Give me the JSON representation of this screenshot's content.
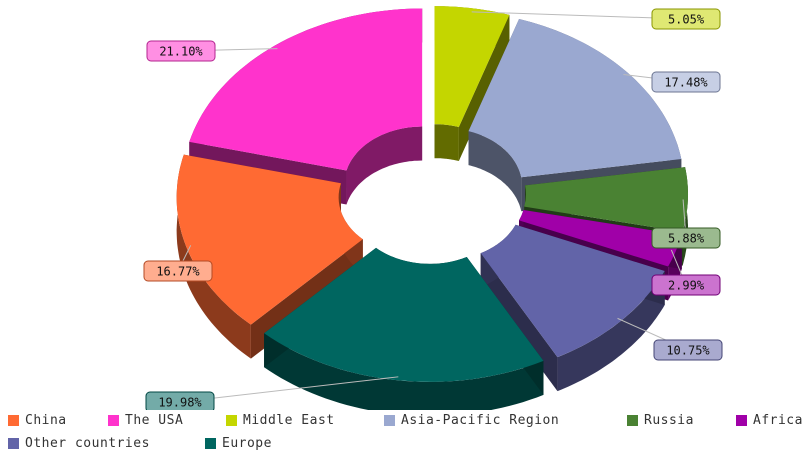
{
  "chart_data": {
    "type": "pie",
    "variant": "3d-exploded-donut",
    "categories": [
      "China",
      "The USA",
      "Middle East",
      "Asia-Pacific Region",
      "Russia",
      "Africa",
      "Other countries",
      "Europe"
    ],
    "values": [
      16.77,
      21.1,
      5.05,
      17.48,
      5.88,
      2.99,
      10.75,
      19.98
    ],
    "labels": [
      "16.77%",
      "21.10%",
      "5.05%",
      "17.48%",
      "5.88%",
      "2.99%",
      "10.75%",
      "19.98%"
    ],
    "colors": [
      "#ff6a33",
      "#ff33cc",
      "#c4d600",
      "#9aa8d0",
      "#4a8233",
      "#a000a8",
      "#6264a8",
      "#006660"
    ],
    "legend_position": "bottom",
    "title": ""
  }
}
